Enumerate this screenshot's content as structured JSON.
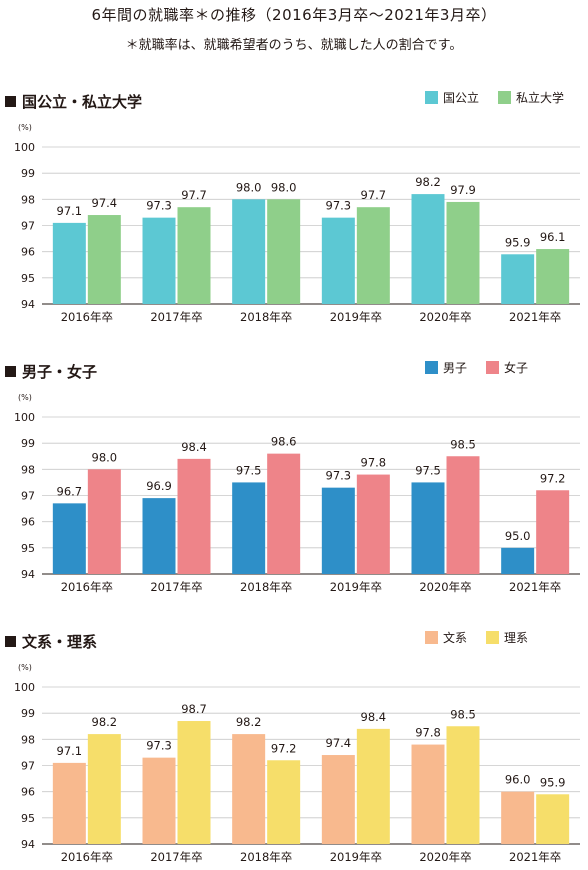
{
  "header": {
    "title": "6年間の就職率＊の推移（2016年3月卒～2021年3月卒）",
    "note": "＊就職率は、就職希望者のうち、就職した人の割合です。"
  },
  "chart_data": [
    {
      "type": "bar",
      "title": "国公立・私立大学",
      "unit": "(%)",
      "categories": [
        "2016年卒",
        "2017年卒",
        "2018年卒",
        "2019年卒",
        "2020年卒",
        "2021年卒"
      ],
      "ylim": [
        94,
        100
      ],
      "yticks": [
        94,
        95,
        96,
        97,
        98,
        99,
        100
      ],
      "grid": true,
      "legend": "top-right",
      "series": [
        {
          "name": "国公立",
          "color": "#5cc8d3",
          "values": [
            97.1,
            97.3,
            98.0,
            97.3,
            98.2,
            95.9
          ]
        },
        {
          "name": "私立大学",
          "color": "#8fcf8a",
          "values": [
            97.4,
            97.7,
            98.0,
            97.7,
            97.9,
            96.1
          ]
        }
      ]
    },
    {
      "type": "bar",
      "title": "男子・女子",
      "unit": "(%)",
      "categories": [
        "2016年卒",
        "2017年卒",
        "2018年卒",
        "2019年卒",
        "2020年卒",
        "2021年卒"
      ],
      "ylim": [
        94,
        100
      ],
      "yticks": [
        94,
        95,
        96,
        97,
        98,
        99,
        100
      ],
      "grid": true,
      "legend": "top-right",
      "series": [
        {
          "name": "男子",
          "color": "#2e8fc8",
          "values": [
            96.7,
            96.9,
            97.5,
            97.3,
            97.5,
            95.0
          ]
        },
        {
          "name": "女子",
          "color": "#ee8489",
          "values": [
            98.0,
            98.4,
            98.6,
            97.8,
            98.5,
            97.2
          ]
        }
      ]
    },
    {
      "type": "bar",
      "title": "文系・理系",
      "unit": "(%)",
      "categories": [
        "2016年卒",
        "2017年卒",
        "2018年卒",
        "2019年卒",
        "2020年卒",
        "2021年卒"
      ],
      "ylim": [
        94,
        100
      ],
      "yticks": [
        94,
        95,
        96,
        97,
        98,
        99,
        100
      ],
      "grid": true,
      "legend": "top-right",
      "series": [
        {
          "name": "文系",
          "color": "#f8b98e",
          "values": [
            97.1,
            97.3,
            98.2,
            97.4,
            97.8,
            96.0
          ]
        },
        {
          "name": "理系",
          "color": "#f6de6a",
          "values": [
            98.2,
            98.7,
            97.2,
            98.4,
            98.5,
            95.9
          ]
        }
      ]
    }
  ]
}
